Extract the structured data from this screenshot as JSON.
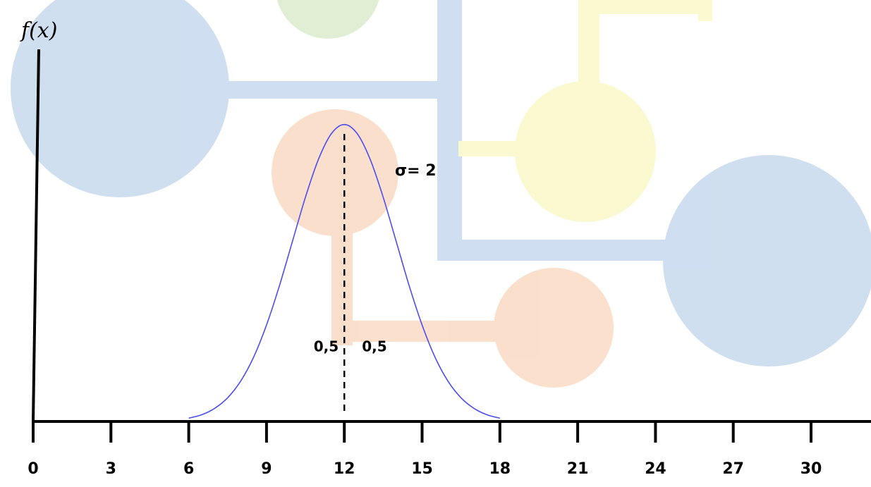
{
  "chart_data": {
    "type": "line",
    "y_label": "f(x)",
    "x": [
      6,
      6.5,
      7,
      7.5,
      8,
      8.5,
      9,
      9.5,
      10,
      10.5,
      11,
      11.5,
      12,
      12.5,
      13,
      13.5,
      14,
      14.5,
      15,
      15.5,
      16,
      16.5,
      17,
      17.5,
      18
    ],
    "values": [
      0.0022,
      0.0045,
      0.0088,
      0.0159,
      0.027,
      0.0431,
      0.0648,
      0.0913,
      0.121,
      0.1506,
      0.176,
      0.1933,
      0.1995,
      0.1933,
      0.176,
      0.1506,
      0.121,
      0.0913,
      0.0648,
      0.0431,
      0.027,
      0.0159,
      0.0088,
      0.0045,
      0.0022
    ],
    "color": "#4b4bf0",
    "xlim": [
      0,
      30
    ],
    "xticks": [
      0,
      3,
      6,
      9,
      12,
      15,
      18,
      21,
      24,
      27,
      30
    ],
    "ylim": [
      0,
      0.25
    ],
    "vline": 12,
    "annotations": [
      "σ= 2",
      "0,5",
      "0,5"
    ]
  }
}
